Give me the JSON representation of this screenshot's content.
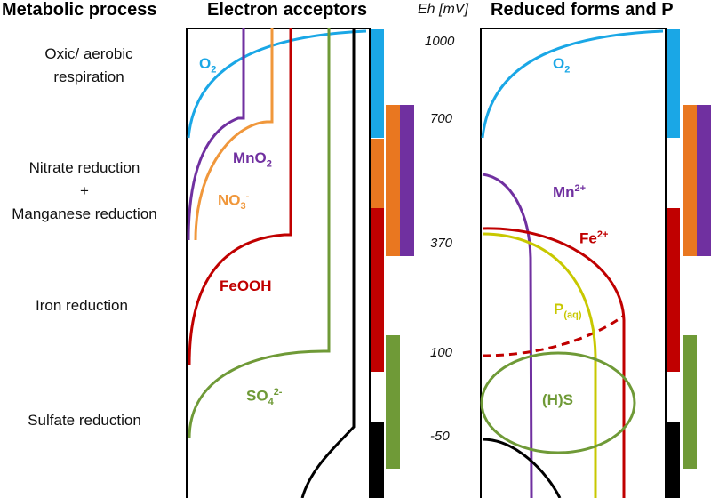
{
  "headers": {
    "metabolic": "Metabolic process",
    "acceptors": "Electron acceptors",
    "eh_axis": "Eh [mV]",
    "reduced": "Reduced forms and P"
  },
  "processes": {
    "oxic_1": "Oxic/ aerobic",
    "oxic_2": "respiration",
    "nitrate_1": "Nitrate reduction",
    "nitrate_2": "+",
    "nitrate_3": "Manganese reduction",
    "iron": "Iron reduction",
    "sulfate": "Sulfate reduction"
  },
  "eh_ticks": [
    "1000",
    "700",
    "370",
    "100",
    "-50"
  ],
  "acceptor_labels": {
    "o2": {
      "base": "O",
      "sub": "2"
    },
    "mno2": {
      "base": "MnO",
      "sub": "2"
    },
    "no3": {
      "base": "NO",
      "sub": "3",
      "sup": "-"
    },
    "feooh": {
      "base": "FeOOH"
    },
    "so4": {
      "base": "SO",
      "sub": "4",
      "sup": "2-"
    }
  },
  "reduced_labels": {
    "o2": {
      "base": "O",
      "sub": "2"
    },
    "mn": {
      "base": "Mn",
      "sup": "2+"
    },
    "fe": {
      "base": "Fe",
      "sup": "2+"
    },
    "p": {
      "base": "P",
      "sub": "(aq)"
    },
    "hs": {
      "base": "(H)S"
    }
  },
  "colors": {
    "oxygen": "#1aa7e6",
    "manganese": "#7030a0",
    "nitrate": "#f0973b",
    "nitrate_bar": "#e97720",
    "iron": "#c00000",
    "sulfate": "#6f9a37",
    "phosphate": "#c8c800",
    "sulfide_black": "#000000"
  }
}
